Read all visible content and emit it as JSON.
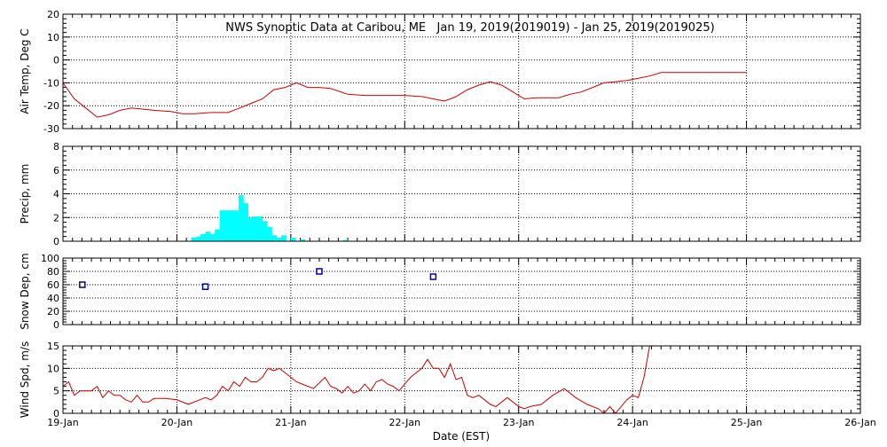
{
  "title": "NWS Synoptic Data at Caribou, ME   Jan 19, 2019(2019019) - Jan 25, 2019(2019025)",
  "xlabel": "Date (EST)",
  "colors": {
    "line": "#cc0000",
    "precip": "#00ffff",
    "snow": "#000099",
    "grid": "#000000"
  },
  "x_ticks": [
    "19-Jan",
    "20-Jan",
    "21-Jan",
    "22-Jan",
    "23-Jan",
    "24-Jan",
    "25-Jan",
    "26-Jan"
  ],
  "chart_data": [
    {
      "type": "line",
      "ylabel": "Air Temp, Deg C",
      "ylim": [
        -30,
        20
      ],
      "yticks": [
        -30,
        -20,
        -10,
        0,
        10,
        20
      ],
      "x_unit": "days since 19-Jan 00:00",
      "series": [
        {
          "x": [
            0,
            0.1,
            0.2,
            0.3,
            0.4,
            0.5,
            0.6,
            0.8,
            0.95,
            1.05,
            1.15,
            1.3,
            1.45,
            1.55,
            1.65,
            1.75,
            1.85,
            1.95,
            2.05,
            2.15,
            2.25,
            2.35,
            2.5,
            2.65,
            2.8,
            3.0,
            3.15,
            3.25,
            3.35,
            3.45,
            3.55,
            3.65,
            3.75,
            3.85,
            3.95,
            4.05,
            4.15,
            4.25,
            4.35,
            4.45,
            4.55,
            4.65,
            4.75,
            4.85,
            4.95,
            5.05,
            5.15,
            5.25,
            5.4,
            5.55,
            5.7,
            5.85,
            6.0
          ],
          "y": [
            -10,
            -17,
            -21,
            -25,
            -24,
            -22,
            -21,
            -22,
            -22.5,
            -23.5,
            -23.5,
            -23,
            -23,
            -21,
            -19,
            -17,
            -13,
            -12,
            -10,
            -12,
            -12,
            -12.5,
            -15,
            -15.5,
            -15.5,
            -15.5,
            -16,
            -17,
            -18,
            -16,
            -13,
            -11,
            -9.5,
            -11,
            -14,
            -17,
            -16.5,
            -16.5,
            -16.5,
            -15,
            -14,
            -12,
            -10,
            -9.5,
            -9,
            -8,
            -7,
            -5.5,
            -5.5,
            -5.5,
            -5.5,
            -5.5,
            -5.5
          ]
        }
      ]
    },
    {
      "type": "bar",
      "ylabel": "Precip, mm",
      "ylim": [
        0,
        8
      ],
      "yticks": [
        0,
        2,
        4,
        6,
        8
      ],
      "bar_width_days": 0.0417,
      "x": [
        1.125,
        1.167,
        1.208,
        1.25,
        1.292,
        1.333,
        1.375,
        1.417,
        1.458,
        1.5,
        1.542,
        1.583,
        1.625,
        1.667,
        1.708,
        1.75,
        1.792,
        1.833,
        1.875,
        1.917,
        2.0,
        2.083,
        2.458
      ],
      "values": [
        0.3,
        0.4,
        0.6,
        0.8,
        0.6,
        1.0,
        2.6,
        2.6,
        2.6,
        2.6,
        3.9,
        3.2,
        2.0,
        2.1,
        2.1,
        1.7,
        1.2,
        0.5,
        0.3,
        0.5,
        0.3,
        0.15,
        0.1
      ]
    },
    {
      "type": "scatter",
      "ylabel": "Snow Dep, cm",
      "ylim": [
        0,
        100
      ],
      "yticks": [
        0,
        20,
        40,
        60,
        80,
        100
      ],
      "x": [
        0.17,
        1.25,
        2.25,
        3.25
      ],
      "y": [
        60,
        57,
        80,
        72
      ]
    },
    {
      "type": "line",
      "ylabel": "Wind Spd, m/s",
      "ylim": [
        0,
        15
      ],
      "yticks": [
        0,
        5,
        10,
        15
      ],
      "series": [
        {
          "x": [
            0,
            0.05,
            0.1,
            0.15,
            0.2,
            0.25,
            0.3,
            0.35,
            0.4,
            0.45,
            0.5,
            0.55,
            0.6,
            0.65,
            0.7,
            0.75,
            0.8,
            0.9,
            1.0,
            1.1,
            1.2,
            1.25,
            1.3,
            1.35,
            1.4,
            1.45,
            1.5,
            1.55,
            1.6,
            1.65,
            1.7,
            1.75,
            1.8,
            1.85,
            1.9,
            1.95,
            2.0,
            2.05,
            2.1,
            2.2,
            2.3,
            2.35,
            2.4,
            2.45,
            2.5,
            2.55,
            2.6,
            2.65,
            2.7,
            2.75,
            2.8,
            2.85,
            2.9,
            2.95,
            3.0,
            3.05,
            3.1,
            3.15,
            3.2,
            3.25,
            3.3,
            3.35,
            3.4,
            3.45,
            3.5,
            3.55,
            3.6,
            3.65,
            3.7,
            3.75,
            3.8,
            3.9,
            4.0,
            4.05,
            4.1,
            4.2,
            4.3,
            4.4,
            4.5,
            4.6,
            4.7,
            4.75,
            4.8,
            4.85,
            4.9,
            4.95,
            5.0,
            5.05,
            5.1,
            5.15,
            5.2,
            5.25
          ],
          "y": [
            6,
            7,
            4,
            5,
            5,
            5,
            6,
            3.5,
            5,
            4,
            4,
            3,
            2.5,
            4,
            2.5,
            2.5,
            3.3,
            3.3,
            3,
            2,
            3,
            3.5,
            3,
            4,
            6,
            5,
            7,
            6,
            8,
            7,
            7,
            8,
            10,
            9.5,
            10,
            9,
            8,
            7,
            6.5,
            5.5,
            8,
            6,
            5.5,
            4.5,
            6,
            4.5,
            5,
            6.5,
            5,
            7,
            7.5,
            6.5,
            6,
            5,
            6.5,
            8,
            9,
            10,
            12,
            10,
            10,
            8,
            11,
            7.5,
            8,
            4,
            3.5,
            4,
            3,
            2,
            1.5,
            3.5,
            1.5,
            1,
            1.5,
            2,
            4,
            5.5,
            3.5,
            2,
            1,
            0,
            1.5,
            0,
            1.5,
            3,
            4,
            3.5,
            8,
            15,
            15,
            15
          ]
        }
      ]
    }
  ]
}
